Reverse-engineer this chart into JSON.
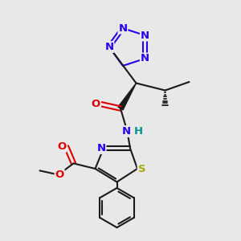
{
  "bg_color": "#e8e8e8",
  "bond_color": "#1a1a1a",
  "N_color": "#2200ee",
  "O_color": "#dd0000",
  "S_color": "#aaaa00",
  "NH_color": "#009090",
  "figsize": [
    3.0,
    3.0
  ],
  "dpi": 100,
  "xlim": [
    0,
    10
  ],
  "ylim": [
    0,
    10
  ],
  "lw": 1.5
}
